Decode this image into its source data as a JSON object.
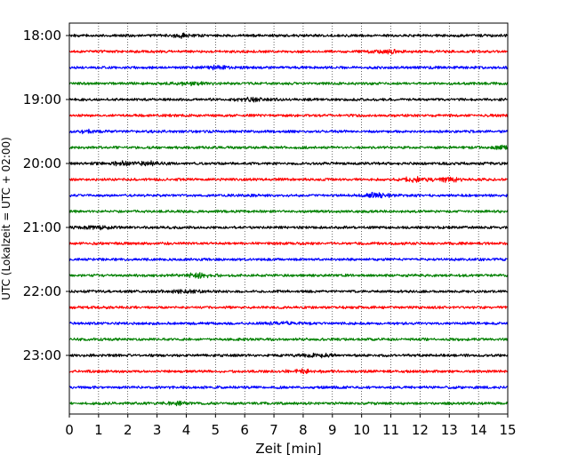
{
  "chart_data": {
    "type": "line",
    "title": "",
    "xlabel": "Zeit  [min]",
    "ylabel": "UTC (Lokalzeit = UTC + 02:00)",
    "xlim": [
      0,
      15
    ],
    "x_ticks": [
      "0",
      "1",
      "2",
      "3",
      "4",
      "5",
      "6",
      "7",
      "8",
      "9",
      "10",
      "11",
      "12",
      "13",
      "14",
      "15"
    ],
    "y_tick_labels": [
      "18:00",
      "19:00",
      "20:00",
      "21:00",
      "22:00",
      "23:00"
    ],
    "trace_start": "18:00",
    "trace_interval_min": 15,
    "trace_count": 24,
    "trace_colors": [
      "#000000",
      "#ff0000",
      "#0000ff",
      "#008000"
    ],
    "grid": "vertical dotted",
    "series": [
      {
        "start": "18:00",
        "color": "#000000",
        "bursts": [
          [
            3.9,
            1.8
          ]
        ]
      },
      {
        "start": "18:15",
        "color": "#ff0000",
        "bursts": [
          [
            10.9,
            1.5
          ]
        ]
      },
      {
        "start": "18:30",
        "color": "#0000ff",
        "bursts": [
          [
            5.0,
            1.5
          ]
        ]
      },
      {
        "start": "18:45",
        "color": "#008000",
        "bursts": [
          [
            4.1,
            1.3
          ]
        ]
      },
      {
        "start": "19:00",
        "color": "#000000",
        "bursts": [
          [
            6.2,
            1.5
          ]
        ]
      },
      {
        "start": "19:15",
        "color": "#ff0000",
        "bursts": []
      },
      {
        "start": "19:30",
        "color": "#0000ff",
        "bursts": [
          [
            0.6,
            1.3
          ]
        ]
      },
      {
        "start": "19:45",
        "color": "#008000",
        "bursts": [
          [
            14.8,
            1.6
          ]
        ]
      },
      {
        "start": "20:00",
        "color": "#000000",
        "bursts": [
          [
            2.8,
            1.8
          ],
          [
            1.8,
            1.4
          ]
        ]
      },
      {
        "start": "20:15",
        "color": "#ff0000",
        "bursts": [
          [
            11.8,
            2.0
          ],
          [
            13.0,
            1.8
          ]
        ]
      },
      {
        "start": "20:30",
        "color": "#0000ff",
        "bursts": [
          [
            10.5,
            2.2
          ]
        ]
      },
      {
        "start": "20:45",
        "color": "#008000",
        "bursts": []
      },
      {
        "start": "21:00",
        "color": "#000000",
        "bursts": [
          [
            1.0,
            1.3
          ]
        ]
      },
      {
        "start": "21:15",
        "color": "#ff0000",
        "bursts": []
      },
      {
        "start": "21:30",
        "color": "#0000ff",
        "bursts": []
      },
      {
        "start": "21:45",
        "color": "#008000",
        "bursts": [
          [
            4.4,
            2.0
          ]
        ]
      },
      {
        "start": "22:00",
        "color": "#000000",
        "bursts": [
          [
            3.8,
            1.3
          ]
        ]
      },
      {
        "start": "22:15",
        "color": "#ff0000",
        "bursts": []
      },
      {
        "start": "22:30",
        "color": "#0000ff",
        "bursts": [
          [
            7.4,
            1.3
          ]
        ]
      },
      {
        "start": "22:45",
        "color": "#008000",
        "bursts": []
      },
      {
        "start": "23:00",
        "color": "#000000",
        "bursts": [
          [
            8.5,
            1.5
          ]
        ]
      },
      {
        "start": "23:15",
        "color": "#ff0000",
        "bursts": [
          [
            8.1,
            1.8
          ]
        ]
      },
      {
        "start": "23:30",
        "color": "#0000ff",
        "bursts": []
      },
      {
        "start": "23:45",
        "color": "#008000",
        "bursts": [
          [
            3.7,
            1.4
          ]
        ]
      }
    ]
  }
}
